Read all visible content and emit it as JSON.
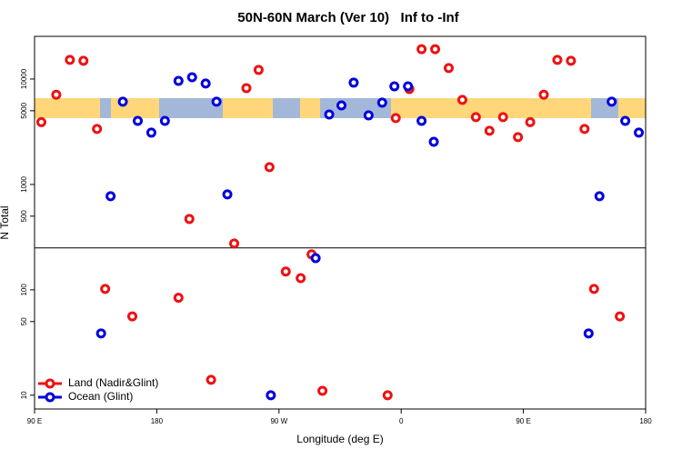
{
  "chart_data": {
    "type": "scatter",
    "title": "50N-60N March (Ver 10)   Inf to -Inf",
    "xlabel": "Longitude (deg E)",
    "ylabel": "N Total",
    "xlim": [
      90,
      540
    ],
    "xticks": [
      {
        "value": 90,
        "label": "90 E"
      },
      {
        "value": 180,
        "label": "180"
      },
      {
        "value": 270,
        "label": "90 W"
      },
      {
        "value": 360,
        "label": "0"
      },
      {
        "value": 450,
        "label": "90 E"
      },
      {
        "value": 540,
        "label": "180"
      }
    ],
    "ylim": [
      7.4,
      25400
    ],
    "yscale": "log",
    "yticks": [
      10,
      50,
      100,
      500,
      1000,
      5000,
      10000
    ],
    "hline": 250,
    "legend": "lower left",
    "series": [
      {
        "name": "Land (Nadir&Glint)",
        "color": "#ee1111",
        "x": [
          95,
          106,
          116,
          126,
          136,
          142,
          162,
          196,
          204,
          220,
          237,
          246,
          255,
          263,
          275,
          286,
          294,
          302,
          350,
          356,
          366,
          375,
          385,
          395,
          405,
          415,
          425,
          435,
          446,
          455,
          465,
          475,
          485,
          495,
          502,
          521
        ],
        "values": [
          3900,
          7100,
          15200,
          14900,
          3360,
          102,
          56,
          84,
          470,
          14,
          275,
          8200,
          12200,
          1460,
          149,
          129,
          217,
          11,
          10,
          4260,
          8040,
          19200,
          19200,
          12700,
          6340,
          4350,
          3230,
          4350,
          2810,
          3900,
          7100,
          15200,
          14900,
          3360,
          102,
          56
        ]
      },
      {
        "name": "Ocean (Glint)",
        "color": "#0000dd",
        "x": [
          139,
          146,
          155,
          166,
          176,
          186,
          196,
          206,
          216,
          224,
          232,
          264,
          297,
          307,
          316,
          325,
          336,
          346,
          355,
          365,
          375,
          384,
          498,
          506,
          515,
          525,
          535
        ],
        "values": [
          38.6,
          773,
          6090,
          4010,
          3100,
          4010,
          9600,
          10400,
          9060,
          6090,
          804,
          10,
          200,
          4610,
          5620,
          9240,
          4520,
          5970,
          8530,
          8530,
          4010,
          2540,
          38.6,
          773,
          6090,
          4010,
          3100
        ]
      }
    ]
  }
}
